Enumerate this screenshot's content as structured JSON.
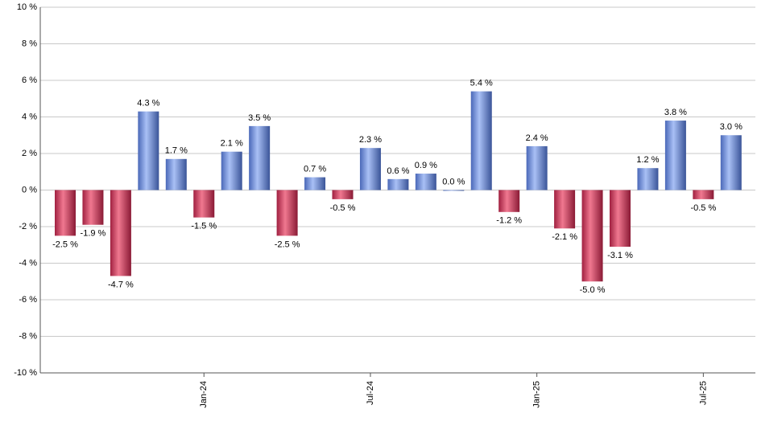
{
  "chart_data": {
    "type": "bar",
    "categories": [
      null,
      null,
      null,
      null,
      null,
      "Jan-24",
      null,
      null,
      null,
      null,
      null,
      "Jul-24",
      null,
      null,
      null,
      null,
      null,
      "Jan-25",
      null,
      null,
      null,
      null,
      null,
      "Jul-25",
      null
    ],
    "values": [
      -2.5,
      -1.9,
      -4.7,
      4.3,
      1.7,
      -1.5,
      2.1,
      3.5,
      -2.5,
      0.7,
      -0.5,
      2.3,
      0.6,
      0.9,
      0.0,
      5.4,
      -1.2,
      2.4,
      -2.1,
      -5.0,
      -3.1,
      1.2,
      3.8,
      -0.5,
      3.0
    ],
    "value_labels": [
      "-2.5 %",
      "-1.9 %",
      "-4.7 %",
      "4.3 %",
      "1.7 %",
      "-1.5 %",
      "2.1 %",
      "3.5 %",
      "-2.5 %",
      "0.7 %",
      "-0.5 %",
      "2.3 %",
      "0.6 %",
      "0.9 %",
      "0.0 %",
      "5.4 %",
      "-1.2 %",
      "2.4 %",
      "-2.1 %",
      "-5.0 %",
      "-3.1 %",
      "1.2 %",
      "3.8 %",
      "-0.5 %",
      "3.0 %"
    ],
    "positive_color": "#7a98e0",
    "negative_color": "#d23a5a",
    "ylim": [
      -10,
      10
    ],
    "yticks": [
      {
        "value": -10,
        "label": "-10 %"
      },
      {
        "value": -8,
        "label": "-8 %"
      },
      {
        "value": -6,
        "label": "-6 %"
      },
      {
        "value": -4,
        "label": "-4 %"
      },
      {
        "value": -2,
        "label": "-2 %"
      },
      {
        "value": 0,
        "label": "0 %"
      },
      {
        "value": 2,
        "label": "2 %"
      },
      {
        "value": 4,
        "label": "4 %"
      },
      {
        "value": 6,
        "label": "6 %"
      },
      {
        "value": 8,
        "label": "8 %"
      },
      {
        "value": 10,
        "label": "10 %"
      }
    ],
    "grid": true
  }
}
